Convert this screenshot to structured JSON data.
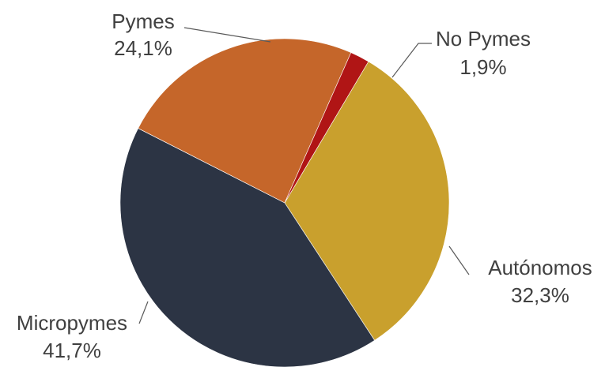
{
  "chart_data": {
    "type": "pie",
    "title": "",
    "slices": [
      {
        "label": "Autónomos",
        "value": 32.3,
        "value_label": "32,3%",
        "color": "#C9A02D"
      },
      {
        "label": "Micropymes",
        "value": 41.7,
        "value_label": "41,7%",
        "color": "#2C3444"
      },
      {
        "label": "Pymes",
        "value": 24.1,
        "value_label": "24,1%",
        "color": "#C5662A"
      },
      {
        "label": "No Pymes",
        "value": 1.9,
        "value_label": "1,9%",
        "color": "#B01515"
      }
    ],
    "legend": "none",
    "data_labels": "outside with leader lines"
  }
}
